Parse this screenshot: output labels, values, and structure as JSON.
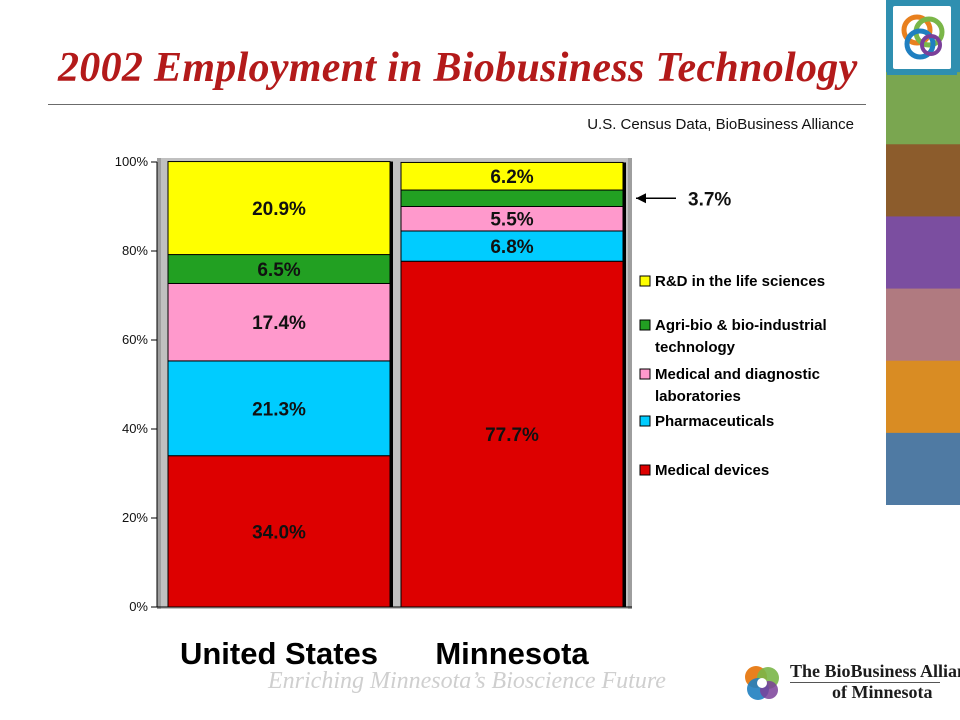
{
  "slide": {
    "title": "2002 Employment in Biobusiness Technology",
    "subtitle": "U.S. Census Data, BioBusiness Alliance",
    "footer": "Enriching Minnesota’s Bioscience Future",
    "brand": {
      "name_line1": "The BioBusiness Alliance",
      "name_line2": "of Minnesota",
      "logo_colors": [
        "#e8801e",
        "#7ab648",
        "#1f7fc0",
        "#7a3f99"
      ]
    },
    "side_strip_colors": [
      "#2f8fb0",
      "#7aa650",
      "#8c5c2c",
      "#7b4ea0",
      "#b07a80",
      "#d98c23",
      "#4f7aa3"
    ]
  },
  "chart_data": {
    "type": "bar",
    "stacked": true,
    "categories": [
      "United States",
      "Minnesota"
    ],
    "ylim": [
      0,
      100
    ],
    "yticks": [
      "0%",
      "20%",
      "40%",
      "60%",
      "80%",
      "100%"
    ],
    "grid": false,
    "legend_position": "right",
    "series": [
      {
        "name": "Medical devices",
        "color": "#dd0000",
        "values": [
          34.0,
          77.7
        ],
        "labels": [
          "34.0%",
          "77.7%"
        ]
      },
      {
        "name": "Pharmaceuticals",
        "color": "#00ccff",
        "values": [
          21.3,
          6.8
        ],
        "labels": [
          "21.3%",
          "6.8%"
        ]
      },
      {
        "name": "Medical and diagnostic laboratories",
        "color": "#ff99cc",
        "values": [
          17.4,
          5.5
        ],
        "labels": [
          "17.4%",
          "5.5%"
        ]
      },
      {
        "name": "Agri-bio & bio-industrial technology",
        "color": "#22a022",
        "values": [
          6.5,
          3.7
        ],
        "labels": [
          "6.5%",
          ""
        ]
      },
      {
        "name": "R&D in the life sciences",
        "color": "#ffff00",
        "values": [
          20.9,
          6.2
        ],
        "labels": [
          "20.9%",
          "6.2%"
        ]
      }
    ],
    "legend": [
      {
        "lines": [
          "R&D in the life sciences"
        ],
        "color": "#ffff00"
      },
      {
        "lines": [
          "Agri-bio & bio-industrial",
          "technology"
        ],
        "color": "#22a022"
      },
      {
        "lines": [
          "Medical and diagnostic",
          "laboratories"
        ],
        "color": "#ff99cc"
      },
      {
        "lines": [
          "Pharmaceuticals"
        ],
        "color": "#00ccff"
      },
      {
        "lines": [
          "Medical devices"
        ],
        "color": "#dd0000"
      }
    ],
    "annotation": "3.7%"
  }
}
